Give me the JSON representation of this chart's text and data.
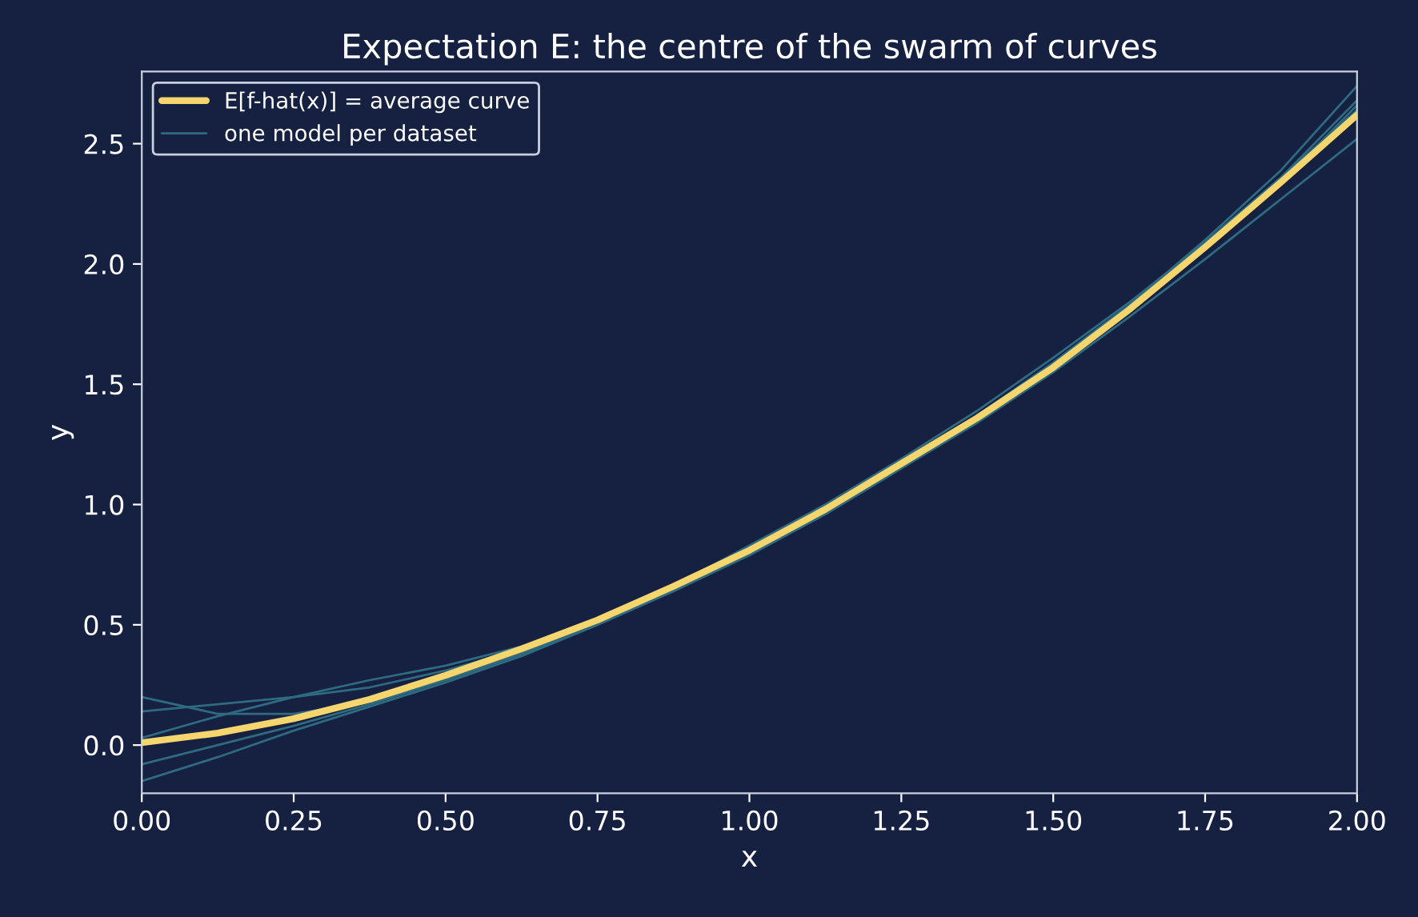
{
  "chart_data": {
    "type": "line",
    "title": "Expectation E: the centre of the swarm of curves",
    "xlabel": "x",
    "ylabel": "y",
    "x": [
      0,
      0.125,
      0.25,
      0.375,
      0.5,
      0.625,
      0.75,
      0.875,
      1.0,
      1.125,
      1.25,
      1.375,
      1.5,
      1.625,
      1.75,
      1.875,
      2.0
    ],
    "series": [
      {
        "name": "E[f-hat(x)] = average curve",
        "color": "#f5d66e",
        "values": [
          0.01,
          0.05,
          0.11,
          0.19,
          0.29,
          0.4,
          0.52,
          0.66,
          0.81,
          0.98,
          1.17,
          1.36,
          1.57,
          1.81,
          2.07,
          2.34,
          2.62
        ]
      },
      {
        "name": "one model per dataset",
        "color": "#2e6a82",
        "values": [
          0.14,
          0.17,
          0.2,
          0.24,
          0.31,
          0.4,
          0.51,
          0.64,
          0.79,
          0.96,
          1.15,
          1.35,
          1.56,
          1.8,
          2.06,
          2.34,
          2.66
        ]
      },
      {
        "color": "#2e6a82",
        "values": [
          -0.08,
          0.0,
          0.08,
          0.17,
          0.27,
          0.38,
          0.5,
          0.64,
          0.8,
          0.97,
          1.16,
          1.36,
          1.58,
          1.82,
          2.08,
          2.36,
          2.68
        ]
      },
      {
        "color": "#2e6a82",
        "values": [
          0.03,
          0.12,
          0.2,
          0.27,
          0.33,
          0.41,
          0.51,
          0.64,
          0.79,
          0.96,
          1.15,
          1.34,
          1.55,
          1.78,
          2.02,
          2.27,
          2.52
        ]
      },
      {
        "color": "#2e6a82",
        "values": [
          0.2,
          0.13,
          0.13,
          0.18,
          0.27,
          0.38,
          0.51,
          0.66,
          0.83,
          1.0,
          1.19,
          1.39,
          1.61,
          1.84,
          2.09,
          2.36,
          2.64
        ]
      },
      {
        "color": "#2e6a82",
        "values": [
          -0.15,
          -0.05,
          0.06,
          0.16,
          0.26,
          0.37,
          0.5,
          0.64,
          0.8,
          0.97,
          1.16,
          1.37,
          1.59,
          1.83,
          2.1,
          2.39,
          2.74
        ]
      }
    ],
    "xlim": [
      0,
      2
    ],
    "ylim": [
      -0.2,
      2.8
    ],
    "xticks": [
      {
        "value": 0,
        "label": "0.00"
      },
      {
        "value": 0.25,
        "label": "0.25"
      },
      {
        "value": 0.5,
        "label": "0.50"
      },
      {
        "value": 0.75,
        "label": "0.75"
      },
      {
        "value": 1,
        "label": "1.00"
      },
      {
        "value": 1.25,
        "label": "1.25"
      },
      {
        "value": 1.5,
        "label": "1.50"
      },
      {
        "value": 1.75,
        "label": "1.75"
      },
      {
        "value": 2,
        "label": "2.00"
      }
    ],
    "yticks": [
      {
        "value": 0,
        "label": "0.0"
      },
      {
        "value": 0.5,
        "label": "0.5"
      },
      {
        "value": 1,
        "label": "1.0"
      },
      {
        "value": 1.5,
        "label": "1.5"
      },
      {
        "value": 2,
        "label": "2.0"
      },
      {
        "value": 2.5,
        "label": "2.5"
      }
    ],
    "legend": "top left",
    "grid": false
  }
}
